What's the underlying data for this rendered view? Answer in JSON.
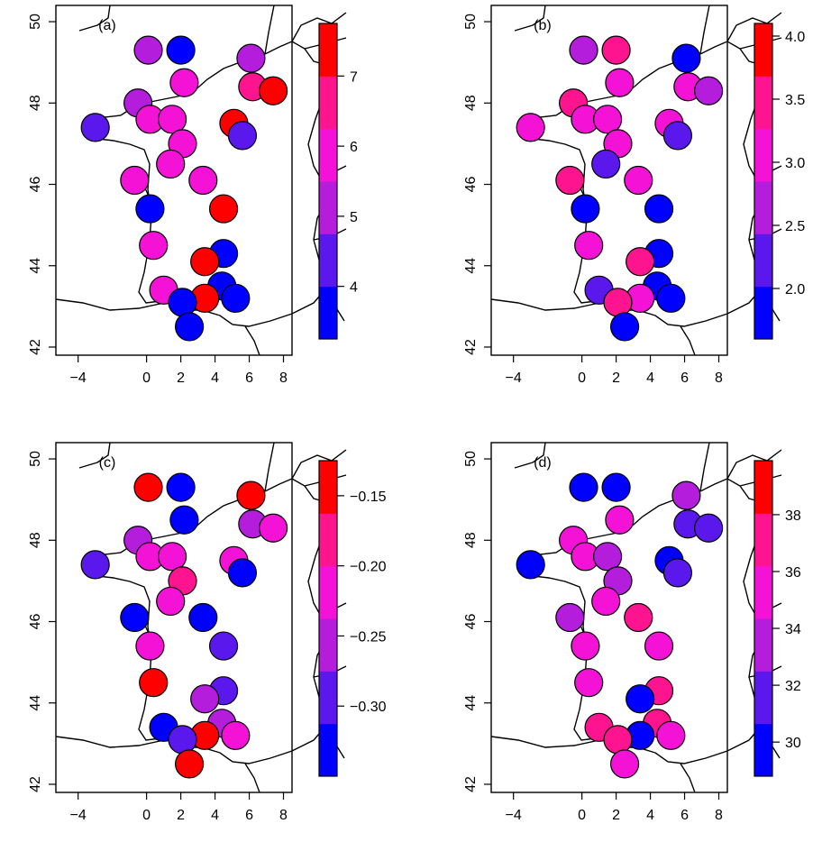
{
  "chart_data": [
    {
      "type": "scatter",
      "panel_label": "(a)",
      "x_ticks": [
        "−4",
        "0",
        "2",
        "4",
        "6",
        "8"
      ],
      "y_ticks": [
        "42",
        "44",
        "46",
        "48",
        "50"
      ],
      "xlim": [
        -5.3,
        8.5
      ],
      "ylim": [
        41.8,
        50.4
      ],
      "colorbar": {
        "min": 3.25,
        "max": 7.75,
        "ticks": [
          "4",
          "5",
          "6",
          "7"
        ],
        "tick_values": [
          4,
          5,
          6,
          7
        ]
      },
      "points": [
        {
          "x": 0.1,
          "y": 49.3,
          "value": 5.2
        },
        {
          "x": 2.0,
          "y": 49.3,
          "value": 3.5
        },
        {
          "x": 6.1,
          "y": 49.1,
          "value": 5.2
        },
        {
          "x": 2.2,
          "y": 48.5,
          "value": 5.8
        },
        {
          "x": 6.2,
          "y": 48.4,
          "value": 6.4
        },
        {
          "x": 7.4,
          "y": 48.3,
          "value": 7.6
        },
        {
          "x": -0.5,
          "y": 48.0,
          "value": 4.9
        },
        {
          "x": 0.2,
          "y": 47.6,
          "value": 6.2
        },
        {
          "x": 1.5,
          "y": 47.6,
          "value": 6.2
        },
        {
          "x": 5.1,
          "y": 47.5,
          "value": 7.1
        },
        {
          "x": -3.0,
          "y": 47.4,
          "value": 4.6
        },
        {
          "x": 5.6,
          "y": 47.2,
          "value": 4.6
        },
        {
          "x": 2.1,
          "y": 47.0,
          "value": 6.2
        },
        {
          "x": 1.4,
          "y": 46.5,
          "value": 6.2
        },
        {
          "x": -0.7,
          "y": 46.1,
          "value": 5.8
        },
        {
          "x": 3.3,
          "y": 46.1,
          "value": 5.8
        },
        {
          "x": 0.2,
          "y": 45.4,
          "value": 3.5
        },
        {
          "x": 4.5,
          "y": 45.4,
          "value": 7.1
        },
        {
          "x": 0.4,
          "y": 44.5,
          "value": 5.8
        },
        {
          "x": 4.5,
          "y": 44.3,
          "value": 3.5
        },
        {
          "x": 3.4,
          "y": 44.1,
          "value": 7.1
        },
        {
          "x": 4.4,
          "y": 43.5,
          "value": 3.5
        },
        {
          "x": 1.0,
          "y": 43.4,
          "value": 5.8
        },
        {
          "x": 3.4,
          "y": 43.2,
          "value": 7.1
        },
        {
          "x": 5.2,
          "y": 43.2,
          "value": 3.5
        },
        {
          "x": 2.1,
          "y": 43.1,
          "value": 3.5
        },
        {
          "x": 2.5,
          "y": 42.5,
          "value": 3.5
        }
      ]
    },
    {
      "type": "scatter",
      "panel_label": "(b)",
      "x_ticks": [
        "−4",
        "0",
        "2",
        "4",
        "6",
        "8"
      ],
      "y_ticks": [
        "42",
        "44",
        "46",
        "48",
        "50"
      ],
      "xlim": [
        -5.3,
        8.5
      ],
      "ylim": [
        41.8,
        50.4
      ],
      "colorbar": {
        "min": 1.6,
        "max": 4.1,
        "ticks": [
          "2.0",
          "2.5",
          "3.0",
          "3.5",
          "4.0"
        ],
        "tick_values": [
          2.0,
          2.5,
          3.0,
          3.5,
          4.0
        ]
      },
      "points": [
        {
          "x": 0.1,
          "y": 49.3,
          "value": 2.6
        },
        {
          "x": 2.0,
          "y": 49.3,
          "value": 3.6
        },
        {
          "x": 6.1,
          "y": 49.1,
          "value": 1.8
        },
        {
          "x": 2.2,
          "y": 48.5,
          "value": 3.1
        },
        {
          "x": 6.2,
          "y": 48.4,
          "value": 3.1
        },
        {
          "x": 7.4,
          "y": 48.3,
          "value": 2.6
        },
        {
          "x": -0.5,
          "y": 48.0,
          "value": 3.6
        },
        {
          "x": 0.2,
          "y": 47.6,
          "value": 3.1
        },
        {
          "x": 1.5,
          "y": 47.6,
          "value": 3.1
        },
        {
          "x": 5.1,
          "y": 47.5,
          "value": 2.9
        },
        {
          "x": -3.0,
          "y": 47.4,
          "value": 3.1
        },
        {
          "x": 5.6,
          "y": 47.2,
          "value": 2.4
        },
        {
          "x": 2.1,
          "y": 47.0,
          "value": 2.9
        },
        {
          "x": 1.4,
          "y": 46.5,
          "value": 2.4
        },
        {
          "x": -0.7,
          "y": 46.1,
          "value": 3.6
        },
        {
          "x": 3.3,
          "y": 46.1,
          "value": 3.1
        },
        {
          "x": 0.2,
          "y": 45.4,
          "value": 1.8
        },
        {
          "x": 4.5,
          "y": 45.4,
          "value": 1.8
        },
        {
          "x": 0.4,
          "y": 44.5,
          "value": 3.1
        },
        {
          "x": 4.5,
          "y": 44.3,
          "value": 1.8
        },
        {
          "x": 3.4,
          "y": 44.1,
          "value": 3.6
        },
        {
          "x": 4.4,
          "y": 43.5,
          "value": 1.8
        },
        {
          "x": 1.0,
          "y": 43.4,
          "value": 2.4
        },
        {
          "x": 3.4,
          "y": 43.2,
          "value": 2.9
        },
        {
          "x": 5.2,
          "y": 43.2,
          "value": 1.8
        },
        {
          "x": 2.1,
          "y": 43.1,
          "value": 3.6
        },
        {
          "x": 2.5,
          "y": 42.5,
          "value": 1.8
        }
      ]
    },
    {
      "type": "scatter",
      "panel_label": "(c)",
      "x_ticks": [
        "−4",
        "0",
        "2",
        "4",
        "6",
        "8"
      ],
      "y_ticks": [
        "42",
        "44",
        "46",
        "48",
        "50"
      ],
      "xlim": [
        -5.3,
        8.5
      ],
      "ylim": [
        41.8,
        50.4
      ],
      "colorbar": {
        "min": -0.35,
        "max": -0.125,
        "ticks": [
          "−0.15",
          "−0.20",
          "−0.25",
          "−0.30"
        ],
        "tick_values": [
          -0.15,
          -0.2,
          -0.25,
          -0.3
        ]
      },
      "points": [
        {
          "x": 0.1,
          "y": 49.3,
          "value": -0.14
        },
        {
          "x": 2.0,
          "y": 49.3,
          "value": -0.34
        },
        {
          "x": 6.1,
          "y": 49.1,
          "value": -0.16
        },
        {
          "x": 2.2,
          "y": 48.5,
          "value": -0.34
        },
        {
          "x": 6.2,
          "y": 48.4,
          "value": -0.26
        },
        {
          "x": 7.4,
          "y": 48.3,
          "value": -0.21
        },
        {
          "x": -0.5,
          "y": 48.0,
          "value": -0.24
        },
        {
          "x": 0.2,
          "y": 47.6,
          "value": -0.21
        },
        {
          "x": 1.5,
          "y": 47.6,
          "value": -0.21
        },
        {
          "x": 5.1,
          "y": 47.5,
          "value": -0.21
        },
        {
          "x": -3.0,
          "y": 47.4,
          "value": -0.29
        },
        {
          "x": 5.6,
          "y": 47.2,
          "value": -0.34
        },
        {
          "x": 2.1,
          "y": 47.0,
          "value": -0.19
        },
        {
          "x": 1.4,
          "y": 46.5,
          "value": -0.21
        },
        {
          "x": -0.7,
          "y": 46.1,
          "value": -0.34
        },
        {
          "x": 3.3,
          "y": 46.1,
          "value": -0.34
        },
        {
          "x": 0.2,
          "y": 45.4,
          "value": -0.21
        },
        {
          "x": 4.5,
          "y": 45.4,
          "value": -0.29
        },
        {
          "x": 0.4,
          "y": 44.5,
          "value": -0.16
        },
        {
          "x": 4.5,
          "y": 44.3,
          "value": -0.29
        },
        {
          "x": 3.4,
          "y": 44.1,
          "value": -0.24
        },
        {
          "x": 4.4,
          "y": 43.5,
          "value": -0.24
        },
        {
          "x": 1.0,
          "y": 43.4,
          "value": -0.34
        },
        {
          "x": 3.4,
          "y": 43.2,
          "value": -0.16
        },
        {
          "x": 5.2,
          "y": 43.2,
          "value": -0.21
        },
        {
          "x": 2.1,
          "y": 43.1,
          "value": -0.29
        },
        {
          "x": 2.5,
          "y": 42.5,
          "value": -0.16
        }
      ]
    },
    {
      "type": "scatter",
      "panel_label": "(d)",
      "x_ticks": [
        "−4",
        "0",
        "2",
        "4",
        "6",
        "8"
      ],
      "y_ticks": [
        "42",
        "44",
        "46",
        "48",
        "50"
      ],
      "xlim": [
        -5.3,
        8.5
      ],
      "ylim": [
        41.8,
        50.4
      ],
      "colorbar": {
        "min": 28.8,
        "max": 39.9,
        "ticks": [
          "30",
          "32",
          "34",
          "36",
          "38"
        ],
        "tick_values": [
          30,
          32,
          34,
          36,
          38
        ]
      },
      "points": [
        {
          "x": 0.1,
          "y": 49.3,
          "value": 29.5
        },
        {
          "x": 2.0,
          "y": 49.3,
          "value": 29.5
        },
        {
          "x": 6.1,
          "y": 49.1,
          "value": 33.0
        },
        {
          "x": 2.2,
          "y": 48.5,
          "value": 35.0
        },
        {
          "x": 6.2,
          "y": 48.4,
          "value": 32.0
        },
        {
          "x": 7.4,
          "y": 48.3,
          "value": 32.0
        },
        {
          "x": -0.5,
          "y": 48.0,
          "value": 35.0
        },
        {
          "x": 0.2,
          "y": 47.6,
          "value": 35.0
        },
        {
          "x": 1.5,
          "y": 47.6,
          "value": 32.5
        },
        {
          "x": 5.1,
          "y": 47.5,
          "value": 29.5
        },
        {
          "x": -3.0,
          "y": 47.4,
          "value": 29.5
        },
        {
          "x": 5.6,
          "y": 47.2,
          "value": 32.0
        },
        {
          "x": 2.1,
          "y": 47.0,
          "value": 34.0
        },
        {
          "x": 1.4,
          "y": 46.5,
          "value": 35.0
        },
        {
          "x": -0.7,
          "y": 46.1,
          "value": 34.0
        },
        {
          "x": 3.3,
          "y": 46.1,
          "value": 37.0
        },
        {
          "x": 0.2,
          "y": 45.4,
          "value": 35.0
        },
        {
          "x": 4.5,
          "y": 45.4,
          "value": 35.0
        },
        {
          "x": 0.4,
          "y": 44.5,
          "value": 35.0
        },
        {
          "x": 4.5,
          "y": 44.3,
          "value": 37.0
        },
        {
          "x": 3.4,
          "y": 44.1,
          "value": 29.5
        },
        {
          "x": 4.4,
          "y": 43.5,
          "value": 37.0
        },
        {
          "x": 1.0,
          "y": 43.4,
          "value": 37.0
        },
        {
          "x": 3.4,
          "y": 43.2,
          "value": 29.5
        },
        {
          "x": 5.2,
          "y": 43.2,
          "value": 35.0
        },
        {
          "x": 2.1,
          "y": 43.1,
          "value": 37.0
        },
        {
          "x": 2.5,
          "y": 42.5,
          "value": 35.0
        }
      ]
    }
  ],
  "colormap": [
    "#0000ff",
    "#5b18ec",
    "#b41ddc",
    "#f312d6",
    "#ff1490",
    "#ff0000"
  ],
  "colormap_steps": 7,
  "point_outline": "#000000"
}
